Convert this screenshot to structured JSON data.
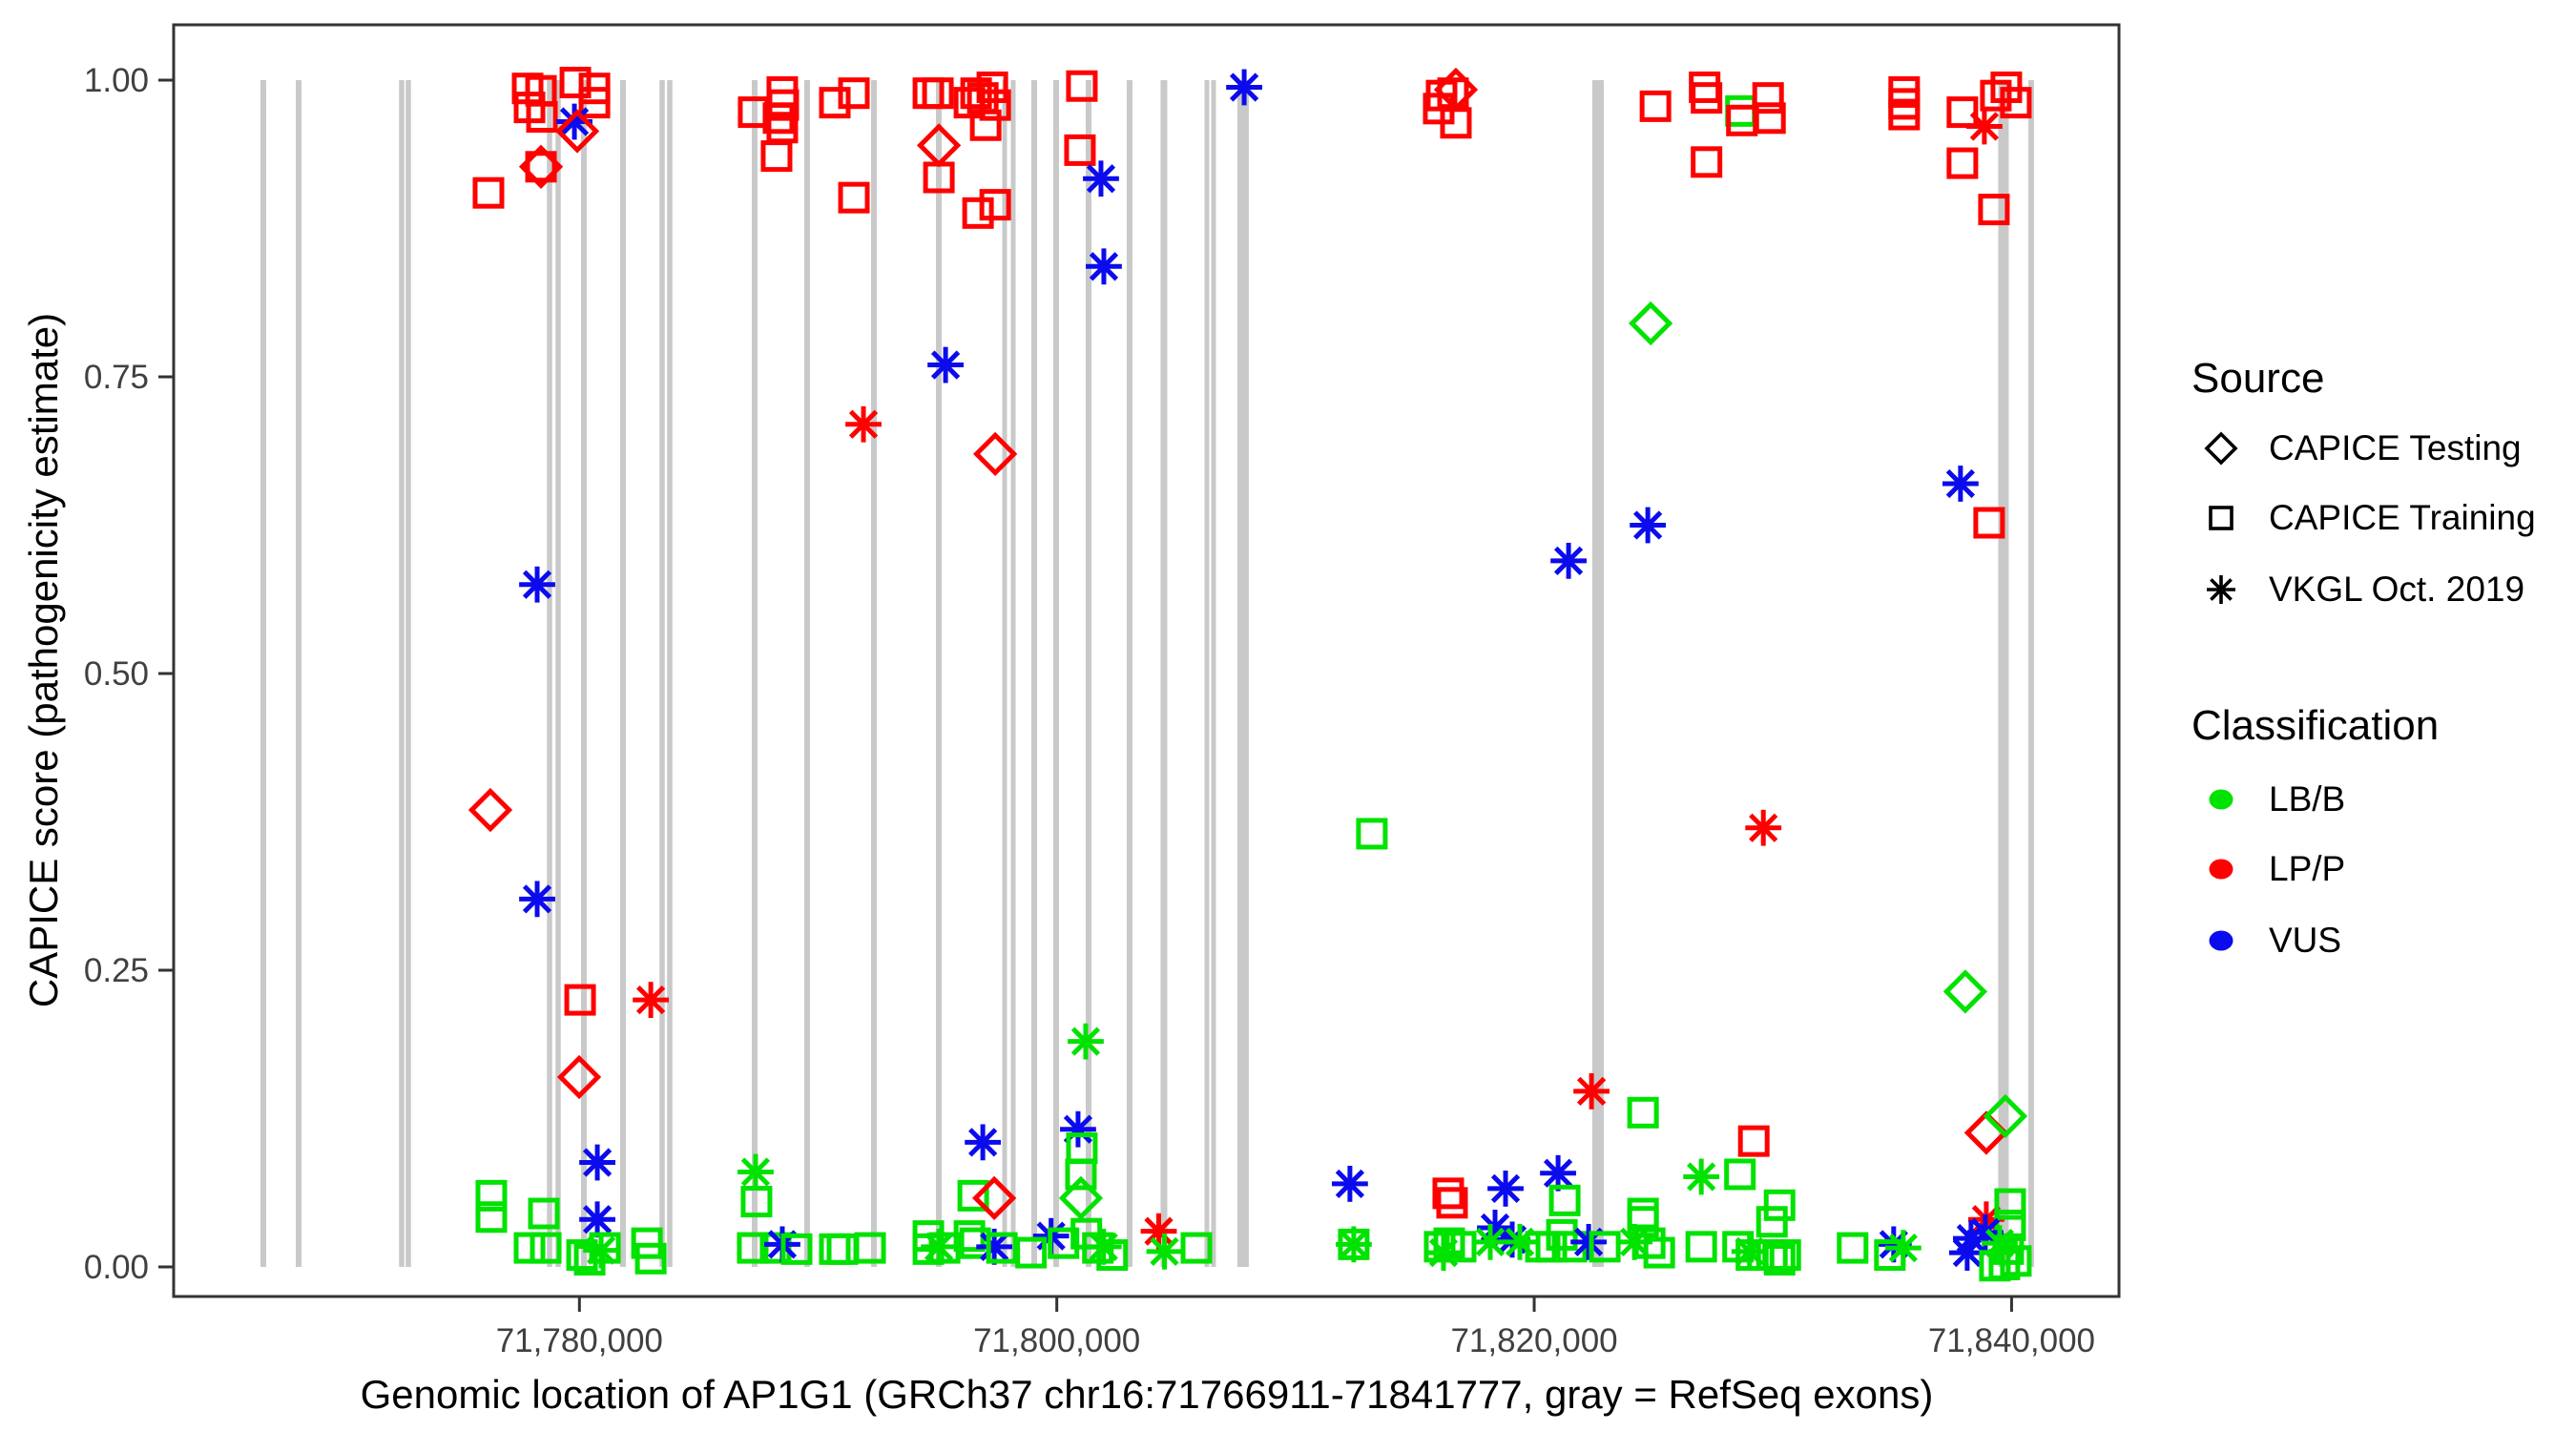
{
  "axes": {
    "x_label": "Genomic location of AP1G1 (GRCh37 chr16:71766911-71841777, gray = RefSeq exons)",
    "y_label": "CAPICE score (pathogenicity estimate)",
    "x_ticks": [
      {
        "value": 71780000,
        "label": "71,780,000"
      },
      {
        "value": 71800000,
        "label": "71,800,000"
      },
      {
        "value": 71820000,
        "label": "71,820,000"
      },
      {
        "value": 71840000,
        "label": "71,840,000"
      }
    ],
    "y_ticks": [
      {
        "value": 0.0,
        "label": "0.00"
      },
      {
        "value": 0.25,
        "label": "0.25"
      },
      {
        "value": 0.5,
        "label": "0.50"
      },
      {
        "value": 0.75,
        "label": "0.75"
      },
      {
        "value": 1.0,
        "label": "1.00"
      }
    ]
  },
  "legend": {
    "source_title": "Source",
    "source_items": [
      {
        "shape": "diamond",
        "label": "CAPICE Testing"
      },
      {
        "shape": "square",
        "label": "CAPICE Training"
      },
      {
        "shape": "asterisk",
        "label": "VKGL Oct. 2019"
      }
    ],
    "class_title": "Classification",
    "class_items": [
      {
        "color_key": "LB/B",
        "label": "LB/B"
      },
      {
        "color_key": "LP/P",
        "label": "LP/P"
      },
      {
        "color_key": "VUS",
        "label": "VUS"
      }
    ]
  },
  "colors": {
    "LB/B": "#00E200",
    "LP/P": "#FF0000",
    "VUS": "#0B0BEE",
    "exon": "#C9C9C9",
    "axis_text": "#404040",
    "panel_border": "#333333"
  },
  "chart_data": {
    "type": "scatter",
    "title": "",
    "xlabel": "Genomic location of AP1G1 (GRCh37 chr16:71766911-71841777, gray = RefSeq exons)",
    "ylabel": "CAPICE score (pathogenicity estimate)",
    "x_range": [
      71763000,
      71844500
    ],
    "y_range": [
      0,
      1
    ],
    "grid": false,
    "legend_position": "right",
    "exon_note": "gray vertical bars = RefSeq exons, drawn full height; format [center_bp, width_bp]",
    "exons": [
      [
        71766757,
        240
      ],
      [
        71768236,
        240
      ],
      [
        71772553,
        220
      ],
      [
        71772833,
        220
      ],
      [
        71778749,
        220
      ],
      [
        71779108,
        220
      ],
      [
        71780188,
        240
      ],
      [
        71781826,
        240
      ],
      [
        71783465,
        220
      ],
      [
        71783785,
        220
      ],
      [
        71787342,
        240
      ],
      [
        71789540,
        240
      ],
      [
        71792338,
        240
      ],
      [
        71795056,
        240
      ],
      [
        71797814,
        200
      ],
      [
        71798173,
        200
      ],
      [
        71799053,
        240
      ],
      [
        71799972,
        240
      ],
      [
        71801331,
        240
      ],
      [
        71803049,
        240
      ],
      [
        71804488,
        280
      ],
      [
        71806287,
        200
      ],
      [
        71806566,
        200
      ],
      [
        71807805,
        480
      ],
      [
        71822674,
        480
      ],
      [
        71839661,
        440
      ],
      [
        71840820,
        240
      ]
    ],
    "point_format": [
      "genomic_position_bp",
      "capice_score",
      "source: d=CAPICE Testing(diamond) s=CAPICE Training(square) a=VKGL Oct. 2019(asterisk)",
      "classification: g=LB/B r=LP/P b=VUS"
    ],
    "points": [
      [
        71776190,
        0.905,
        "s",
        "r"
      ],
      [
        71777830,
        0.993,
        "s",
        "r"
      ],
      [
        71778390,
        0.991,
        "s",
        "r"
      ],
      [
        71777910,
        0.977,
        "s",
        "r"
      ],
      [
        71778430,
        0.969,
        "s",
        "r"
      ],
      [
        71779830,
        0.998,
        "s",
        "r"
      ],
      [
        71780630,
        0.993,
        "s",
        "r"
      ],
      [
        71780630,
        0.981,
        "s",
        "r"
      ],
      [
        71779790,
        0.965,
        "a",
        "b"
      ],
      [
        71779910,
        0.957,
        "d",
        "r"
      ],
      [
        71778390,
        0.927,
        "d",
        "r"
      ],
      [
        71778390,
        0.927,
        "s",
        "r"
      ],
      [
        71776270,
        0.385,
        "d",
        "r"
      ],
      [
        71778230,
        0.575,
        "a",
        "b"
      ],
      [
        71778230,
        0.31,
        "a",
        "b"
      ],
      [
        71780030,
        0.225,
        "s",
        "r"
      ],
      [
        71782990,
        0.225,
        "a",
        "r"
      ],
      [
        71776310,
        0.06,
        "s",
        "g"
      ],
      [
        71776310,
        0.042,
        "s",
        "g"
      ],
      [
        71778510,
        0.045,
        "s",
        "g"
      ],
      [
        71777910,
        0.016,
        "s",
        "g"
      ],
      [
        71778590,
        0.016,
        "s",
        "g"
      ],
      [
        71779990,
        0.16,
        "d",
        "r"
      ],
      [
        71780750,
        0.088,
        "a",
        "b"
      ],
      [
        71780750,
        0.04,
        "a",
        "b"
      ],
      [
        71780110,
        0.01,
        "s",
        "g"
      ],
      [
        71780430,
        0.006,
        "s",
        "g"
      ],
      [
        71780910,
        0.014,
        "a",
        "g"
      ],
      [
        71781070,
        0.016,
        "s",
        "g"
      ],
      [
        71782830,
        0.02,
        "s",
        "g"
      ],
      [
        71782990,
        0.007,
        "s",
        "g"
      ],
      [
        71787300,
        0.973,
        "s",
        "r"
      ],
      [
        71788500,
        0.99,
        "s",
        "r"
      ],
      [
        71788540,
        0.979,
        "s",
        "r"
      ],
      [
        71788340,
        0.968,
        "s",
        "r"
      ],
      [
        71788500,
        0.96,
        "s",
        "r"
      ],
      [
        71788260,
        0.936,
        "s",
        "r"
      ],
      [
        71790700,
        0.981,
        "s",
        "r"
      ],
      [
        71791500,
        0.989,
        "s",
        "r"
      ],
      [
        71791500,
        0.901,
        "s",
        "r"
      ],
      [
        71791900,
        0.71,
        "a",
        "r"
      ],
      [
        71787380,
        0.08,
        "a",
        "g"
      ],
      [
        71787420,
        0.055,
        "s",
        "g"
      ],
      [
        71787260,
        0.016,
        "s",
        "g"
      ],
      [
        71788220,
        0.016,
        "s",
        "g"
      ],
      [
        71788500,
        0.019,
        "a",
        "b"
      ],
      [
        71789100,
        0.015,
        "s",
        "g"
      ],
      [
        71790700,
        0.015,
        "s",
        "g"
      ],
      [
        71791020,
        0.015,
        "s",
        "g"
      ],
      [
        71792180,
        0.016,
        "s",
        "g"
      ],
      [
        71794620,
        0.989,
        "s",
        "r"
      ],
      [
        71795020,
        0.989,
        "s",
        "r"
      ],
      [
        71795060,
        0.945,
        "d",
        "r"
      ],
      [
        71795060,
        0.918,
        "s",
        "r"
      ],
      [
        71795340,
        0.76,
        "a",
        "b"
      ],
      [
        71796340,
        0.981,
        "s",
        "r"
      ],
      [
        71796620,
        0.989,
        "s",
        "r"
      ],
      [
        71796900,
        0.985,
        "s",
        "r"
      ],
      [
        71797300,
        0.994,
        "s",
        "r"
      ],
      [
        71797420,
        0.979,
        "s",
        "r"
      ],
      [
        71797020,
        0.962,
        "s",
        "r"
      ],
      [
        71796700,
        0.888,
        "s",
        "r"
      ],
      [
        71797420,
        0.895,
        "s",
        "r"
      ],
      [
        71797420,
        0.685,
        "d",
        "r"
      ],
      [
        71794620,
        0.026,
        "s",
        "g"
      ],
      [
        71794620,
        0.015,
        "s",
        "g"
      ],
      [
        71795060,
        0.017,
        "a",
        "g"
      ],
      [
        71795300,
        0.016,
        "s",
        "g"
      ],
      [
        71796500,
        0.06,
        "s",
        "g"
      ],
      [
        71797380,
        0.058,
        "d",
        "r"
      ],
      [
        71796900,
        0.105,
        "a",
        "b"
      ],
      [
        71796580,
        0.02,
        "s",
        "g"
      ],
      [
        71796340,
        0.026,
        "s",
        "g"
      ],
      [
        71797380,
        0.017,
        "a",
        "b"
      ],
      [
        71797700,
        0.016,
        "s",
        "g"
      ],
      [
        71801050,
        0.995,
        "s",
        "r"
      ],
      [
        71800970,
        0.941,
        "s",
        "r"
      ],
      [
        71801850,
        0.917,
        "a",
        "b"
      ],
      [
        71801970,
        0.843,
        "a",
        "b"
      ],
      [
        71801210,
        0.19,
        "a",
        "g"
      ],
      [
        71800890,
        0.116,
        "a",
        "b"
      ],
      [
        71801050,
        0.1,
        "s",
        "g"
      ],
      [
        71801010,
        0.078,
        "s",
        "g"
      ],
      [
        71801010,
        0.058,
        "d",
        "g"
      ],
      [
        71799760,
        0.026,
        "a",
        "b"
      ],
      [
        71798920,
        0.012,
        "s",
        "g"
      ],
      [
        71800280,
        0.02,
        "s",
        "g"
      ],
      [
        71801240,
        0.028,
        "s",
        "g"
      ],
      [
        71801720,
        0.016,
        "s",
        "g"
      ],
      [
        71801960,
        0.017,
        "a",
        "g"
      ],
      [
        71802320,
        0.01,
        "s",
        "g"
      ],
      [
        71804270,
        0.03,
        "a",
        "r"
      ],
      [
        71804510,
        0.013,
        "a",
        "g"
      ],
      [
        71805850,
        0.016,
        "s",
        "g"
      ],
      [
        71807850,
        0.994,
        "a",
        "b"
      ],
      [
        71812280,
        0.07,
        "a",
        "b"
      ],
      [
        71812440,
        0.019,
        "s",
        "g"
      ],
      [
        71812440,
        0.019,
        "a",
        "g"
      ],
      [
        71813200,
        0.365,
        "s",
        "g"
      ],
      [
        71816120,
        0.987,
        "s",
        "r"
      ],
      [
        71816600,
        0.989,
        "s",
        "r"
      ],
      [
        71816720,
        0.992,
        "d",
        "r"
      ],
      [
        71816720,
        0.964,
        "s",
        "r"
      ],
      [
        71816000,
        0.976,
        "s",
        "r"
      ],
      [
        71816400,
        0.062,
        "s",
        "r"
      ],
      [
        71816560,
        0.054,
        "s",
        "r"
      ],
      [
        71816040,
        0.017,
        "s",
        "g"
      ],
      [
        71816440,
        0.02,
        "s",
        "g"
      ],
      [
        71816920,
        0.017,
        "s",
        "g"
      ],
      [
        71816200,
        0.012,
        "a",
        "g"
      ],
      [
        71818360,
        0.033,
        "a",
        "b"
      ],
      [
        71818800,
        0.066,
        "a",
        "b"
      ],
      [
        71819080,
        0.023,
        "a",
        "b"
      ],
      [
        71818160,
        0.021,
        "a",
        "g"
      ],
      [
        71819400,
        0.021,
        "a",
        "g"
      ],
      [
        71820280,
        0.017,
        "s",
        "g"
      ],
      [
        71820720,
        0.017,
        "s",
        "g"
      ],
      [
        71821000,
        0.079,
        "a",
        "b"
      ],
      [
        71821160,
        0.027,
        "s",
        "g"
      ],
      [
        71821280,
        0.056,
        "s",
        "g"
      ],
      [
        71821440,
        0.595,
        "a",
        "b"
      ],
      [
        71821560,
        0.017,
        "s",
        "g"
      ],
      [
        71822280,
        0.021,
        "a",
        "b"
      ],
      [
        71822400,
        0.148,
        "a",
        "r"
      ],
      [
        71822960,
        0.017,
        "s",
        "g"
      ],
      [
        71824200,
        0.021,
        "a",
        "g"
      ],
      [
        71824560,
        0.13,
        "s",
        "g"
      ],
      [
        71824560,
        0.045,
        "s",
        "g"
      ],
      [
        71824560,
        0.038,
        "s",
        "g"
      ],
      [
        71824760,
        0.625,
        "a",
        "b"
      ],
      [
        71824880,
        0.795,
        "d",
        "g"
      ],
      [
        71825080,
        0.978,
        "s",
        "r"
      ],
      [
        71824840,
        0.02,
        "s",
        "g"
      ],
      [
        71825240,
        0.012,
        "s",
        "g"
      ],
      [
        71827140,
        0.994,
        "s",
        "r"
      ],
      [
        71827220,
        0.985,
        "s",
        "r"
      ],
      [
        71827220,
        0.931,
        "s",
        "r"
      ],
      [
        71827000,
        0.076,
        "a",
        "g"
      ],
      [
        71827000,
        0.017,
        "s",
        "g"
      ],
      [
        71828660,
        0.974,
        "s",
        "g"
      ],
      [
        71828700,
        0.966,
        "s",
        "r"
      ],
      [
        71828620,
        0.078,
        "s",
        "g"
      ],
      [
        71829200,
        0.106,
        "s",
        "r"
      ],
      [
        71828540,
        0.017,
        "s",
        "g"
      ],
      [
        71829020,
        0.013,
        "a",
        "g"
      ],
      [
        71829100,
        0.01,
        "s",
        "g"
      ],
      [
        71829600,
        0.37,
        "a",
        "r"
      ],
      [
        71829800,
        0.985,
        "s",
        "r"
      ],
      [
        71829880,
        0.968,
        "s",
        "r"
      ],
      [
        71829960,
        0.038,
        "s",
        "g"
      ],
      [
        71830280,
        0.052,
        "s",
        "g"
      ],
      [
        71829960,
        0.01,
        "s",
        "g"
      ],
      [
        71830280,
        0.006,
        "s",
        "g"
      ],
      [
        71830520,
        0.01,
        "s",
        "g"
      ],
      [
        71833340,
        0.016,
        "s",
        "g"
      ],
      [
        71835060,
        0.019,
        "a",
        "b"
      ],
      [
        71835460,
        0.016,
        "a",
        "g"
      ],
      [
        71834900,
        0.01,
        "s",
        "g"
      ],
      [
        71835500,
        0.99,
        "s",
        "r"
      ],
      [
        71835500,
        0.98,
        "s",
        "r"
      ],
      [
        71835500,
        0.971,
        "s",
        "r"
      ],
      [
        71837940,
        0.973,
        "s",
        "r"
      ],
      [
        71837940,
        0.93,
        "s",
        "r"
      ],
      [
        71837860,
        0.66,
        "a",
        "b"
      ],
      [
        71838860,
        0.961,
        "a",
        "r"
      ],
      [
        71839340,
        0.987,
        "s",
        "r"
      ],
      [
        71839780,
        0.994,
        "s",
        "r"
      ],
      [
        71840180,
        0.981,
        "s",
        "r"
      ],
      [
        71839260,
        0.891,
        "s",
        "r"
      ],
      [
        71839060,
        0.627,
        "s",
        "r"
      ],
      [
        71838060,
        0.232,
        "d",
        "g"
      ],
      [
        71838940,
        0.113,
        "d",
        "r"
      ],
      [
        71839740,
        0.127,
        "d",
        "g"
      ],
      [
        71838940,
        0.04,
        "a",
        "r"
      ],
      [
        71839940,
        0.053,
        "s",
        "g"
      ],
      [
        71839940,
        0.035,
        "s",
        "g"
      ],
      [
        71839860,
        0.015,
        "s",
        "g"
      ],
      [
        71840180,
        0.005,
        "s",
        "g"
      ],
      [
        71838300,
        0.024,
        "a",
        "b"
      ],
      [
        71838900,
        0.029,
        "a",
        "b"
      ],
      [
        71838140,
        0.012,
        "a",
        "b"
      ],
      [
        71839500,
        0.02,
        "a",
        "g"
      ],
      [
        71839700,
        0.002,
        "s",
        "g"
      ],
      [
        71839300,
        0.001,
        "s",
        "g"
      ]
    ]
  }
}
